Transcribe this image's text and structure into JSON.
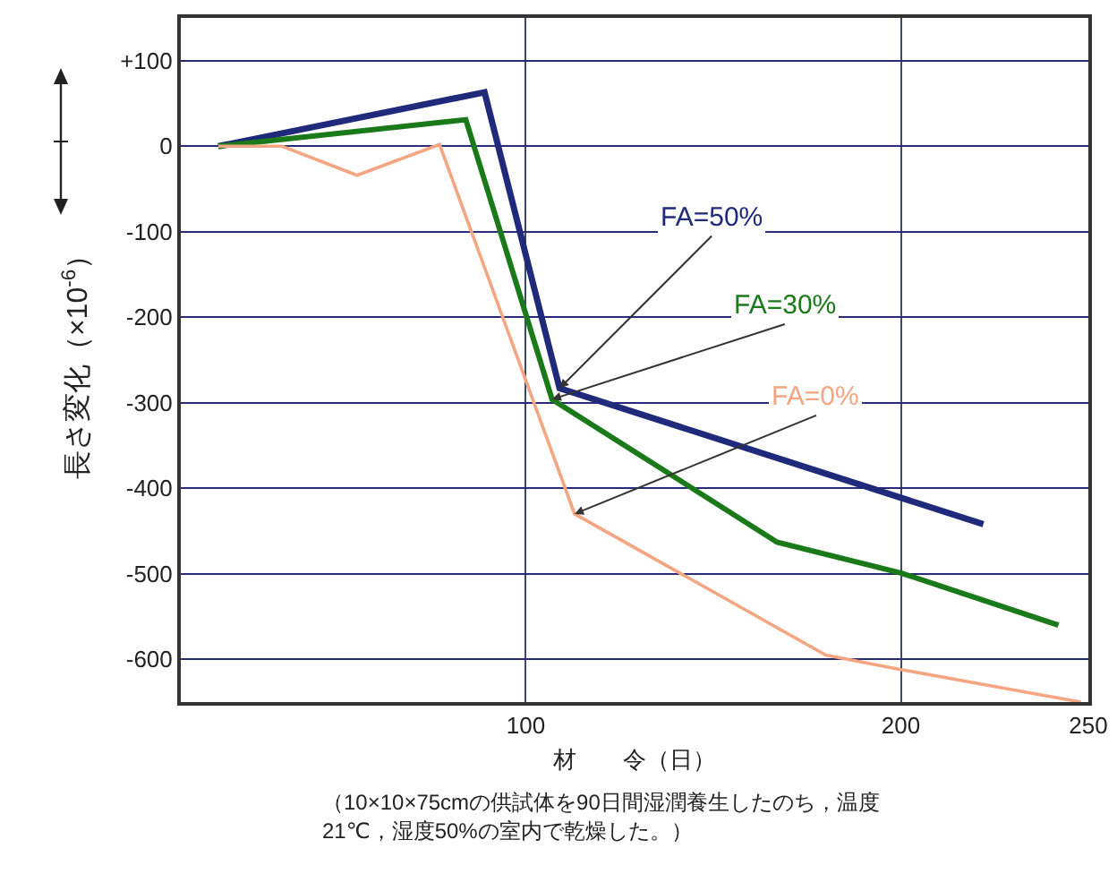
{
  "chart_data": {
    "type": "line",
    "xlabel": "材　　令（日）",
    "ylabel": "長さ変化（×10$^{-6}$）",
    "xlim": [
      8,
      250
    ],
    "xticks": [
      100,
      200,
      250
    ],
    "ylim": [
      -650,
      150
    ],
    "yticks": [
      {
        "value": 100,
        "label": "+100"
      },
      0,
      -100,
      -200,
      -300,
      -400,
      -500,
      -600
    ],
    "grid": true,
    "legend": false,
    "marker": "none",
    "line_style": "solid",
    "series": [
      {
        "name": "FA=50%",
        "color": "#1f2a7a",
        "x": [
          18,
          89,
          109,
          222
        ],
        "values": [
          0,
          63,
          -283,
          -442
        ]
      },
      {
        "name": "FA=30%",
        "color": "#1a7a1a",
        "x": [
          18,
          84,
          107,
          167,
          200,
          242
        ],
        "values": [
          0,
          31,
          -296,
          -463,
          -499,
          -560
        ]
      },
      {
        "name": "FA=0%",
        "color": "#f4a582",
        "x": [
          18,
          35,
          55,
          77,
          113,
          180,
          200,
          248
        ],
        "values": [
          0,
          0,
          -34,
          2,
          -430,
          -595,
          -612,
          -650
        ]
      }
    ],
    "annotations": [
      "（10×10×75cmの供試体を90日間湿潤養生したのち，温度21℃，湿度50%の室内で乾燥した。）"
    ]
  }
}
